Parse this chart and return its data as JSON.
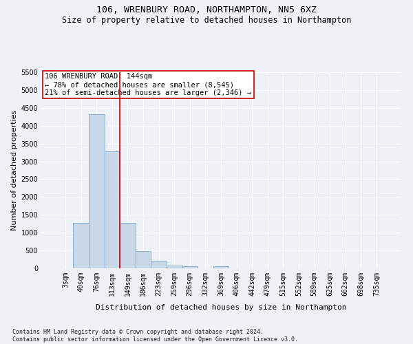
{
  "title_main": "106, WRENBURY ROAD, NORTHAMPTON, NN5 6XZ",
  "title_sub": "Size of property relative to detached houses in Northampton",
  "xlabel": "Distribution of detached houses by size in Northampton",
  "ylabel": "Number of detached properties",
  "footnote": "Contains HM Land Registry data © Crown copyright and database right 2024.\nContains public sector information licensed under the Open Government Licence v3.0.",
  "bar_labels": [
    "3sqm",
    "40sqm",
    "76sqm",
    "113sqm",
    "149sqm",
    "186sqm",
    "223sqm",
    "259sqm",
    "296sqm",
    "332sqm",
    "369sqm",
    "406sqm",
    "442sqm",
    "479sqm",
    "515sqm",
    "552sqm",
    "589sqm",
    "625sqm",
    "662sqm",
    "698sqm",
    "735sqm"
  ],
  "bar_values": [
    0,
    1270,
    4320,
    3290,
    1280,
    480,
    215,
    75,
    55,
    0,
    55,
    0,
    0,
    0,
    0,
    0,
    0,
    0,
    0,
    0,
    0
  ],
  "bar_color": "#c8d8e8",
  "bar_edgecolor": "#7aa8c8",
  "vline_x_index": 3,
  "vline_color": "#cc0000",
  "ylim": [
    0,
    5500
  ],
  "yticks": [
    0,
    500,
    1000,
    1500,
    2000,
    2500,
    3000,
    3500,
    4000,
    4500,
    5000,
    5500
  ],
  "annotation_text": "106 WRENBURY ROAD: 144sqm\n← 78% of detached houses are smaller (8,545)\n21% of semi-detached houses are larger (2,346) →",
  "background_color": "#eef2f7",
  "grid_color": "#ffffff",
  "title_fontsize": 9.5,
  "subtitle_fontsize": 8.5,
  "axis_label_fontsize": 8,
  "tick_fontsize": 7,
  "annotation_fontsize": 7.5,
  "footnote_fontsize": 6
}
